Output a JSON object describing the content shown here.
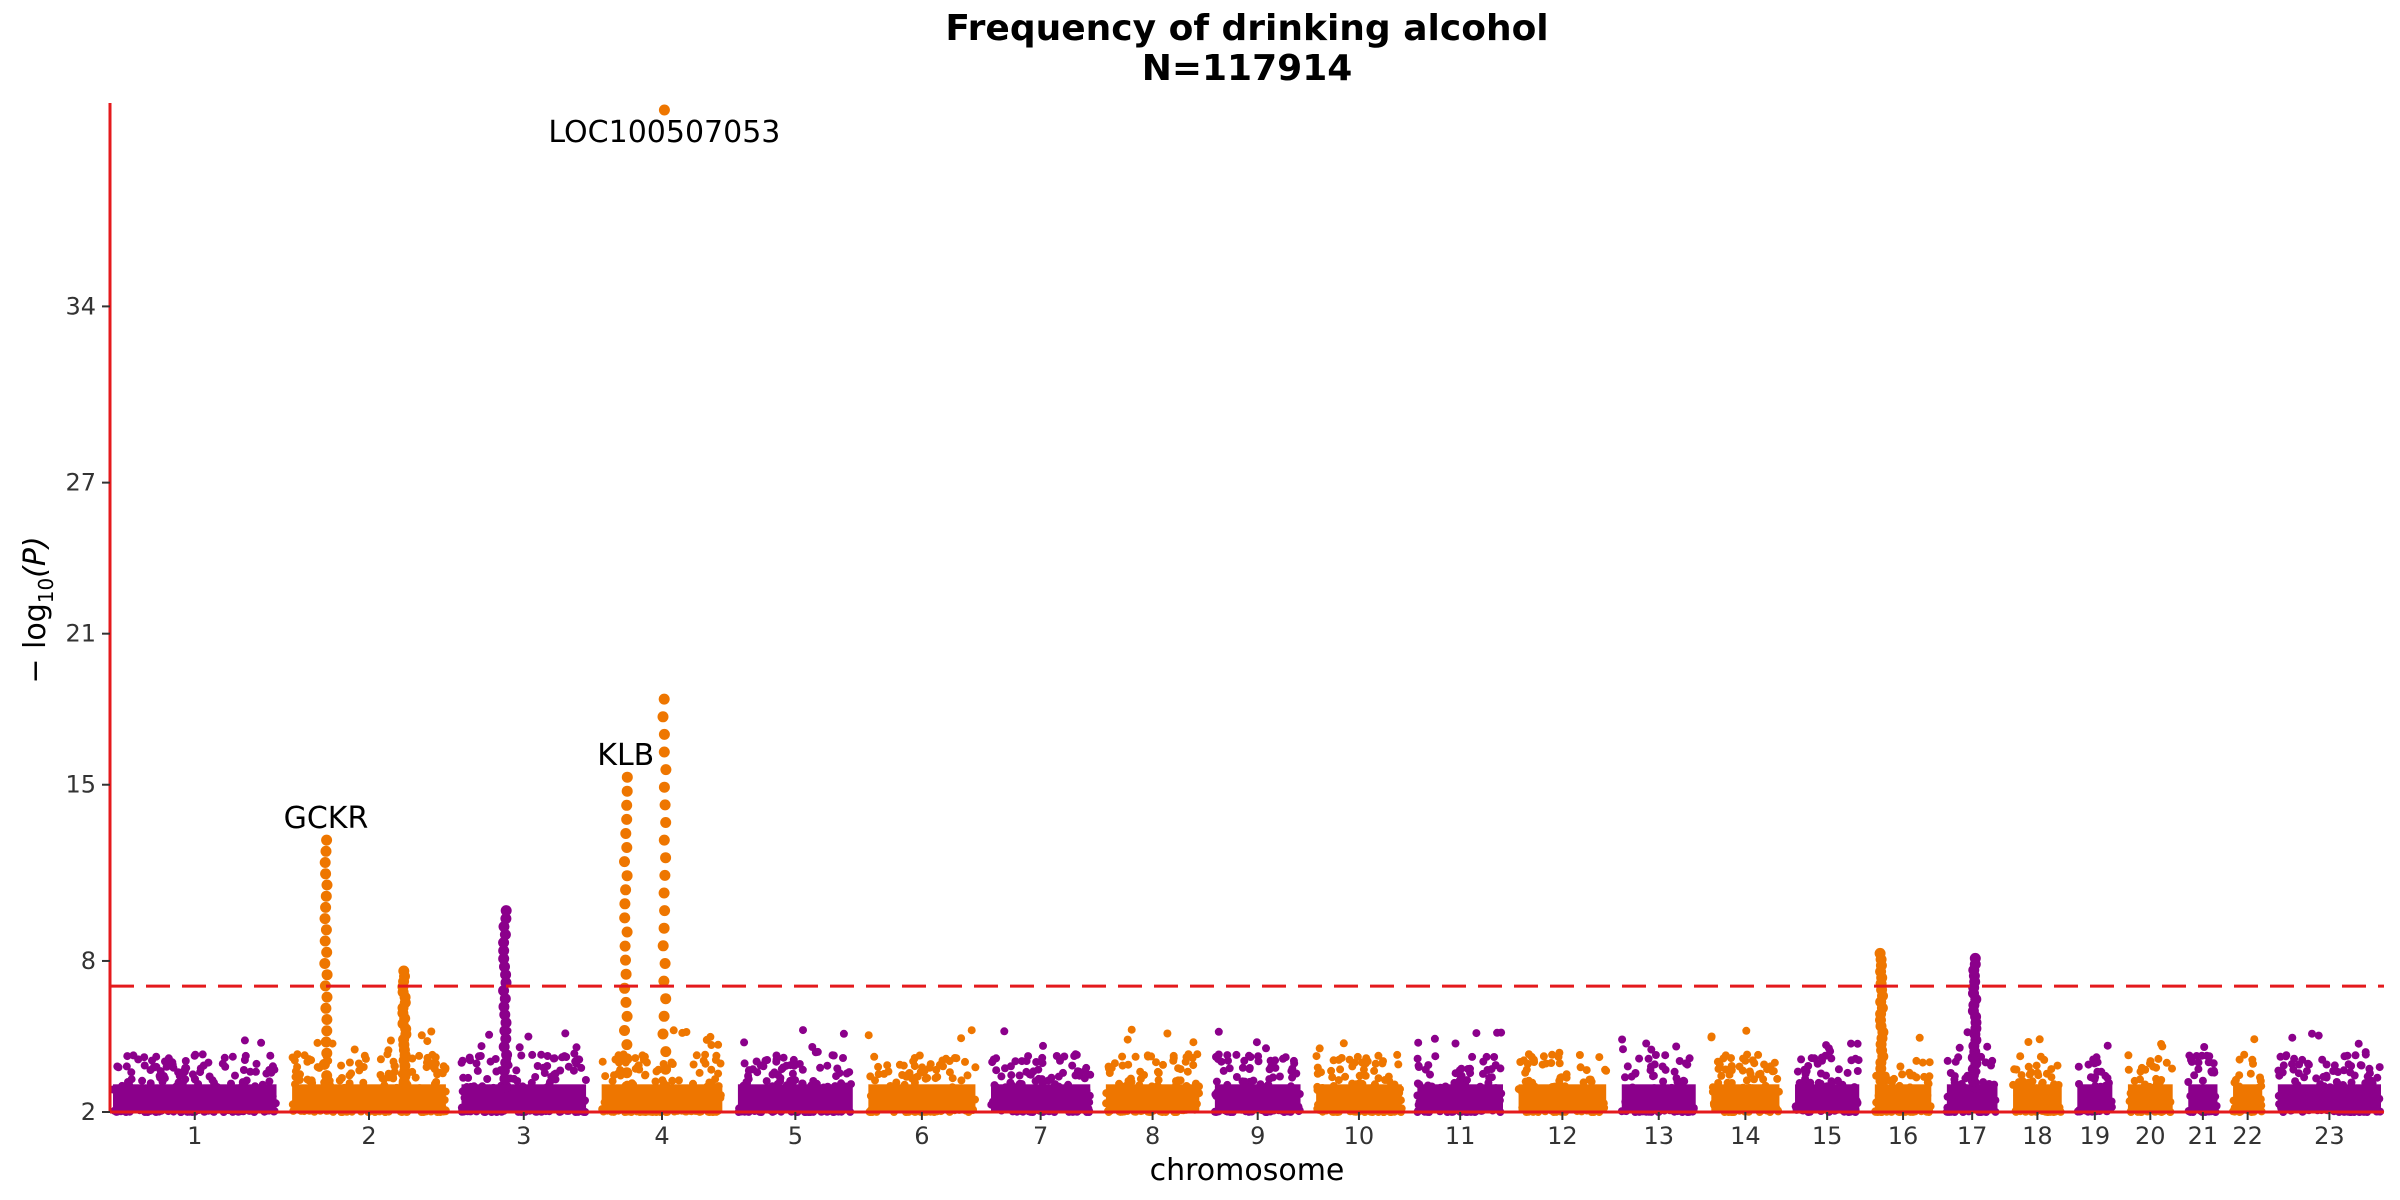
{
  "chart_data": {
    "type": "scatter",
    "subtype": "manhattan",
    "title": "Frequency of drinking alcohol",
    "subtitle": "N=117914",
    "xlabel": "chromosome",
    "ylabel_prefix": "− log",
    "ylabel_sub": "10",
    "ylabel_suffix": "(P)",
    "ylim": [
      2,
      42
    ],
    "yticks": [
      "2",
      "8",
      "15",
      "21",
      "27",
      "34"
    ],
    "significance_threshold": 7,
    "colors": {
      "odd": "#8B008B",
      "even": "#EE7600",
      "axis": "#E41A1C",
      "threshold": "#E41A1C"
    },
    "chromosomes": [
      {
        "label": "1",
        "size": 8.4
      },
      {
        "label": "2",
        "size": 7.9
      },
      {
        "label": "3",
        "size": 6.4
      },
      {
        "label": "4",
        "size": 6.2
      },
      {
        "label": "5",
        "size": 5.9
      },
      {
        "label": "6",
        "size": 5.5
      },
      {
        "label": "7",
        "size": 5.1
      },
      {
        "label": "8",
        "size": 4.8
      },
      {
        "label": "9",
        "size": 4.4
      },
      {
        "label": "10",
        "size": 4.4
      },
      {
        "label": "11",
        "size": 4.4
      },
      {
        "label": "12",
        "size": 4.5
      },
      {
        "label": "13",
        "size": 3.8
      },
      {
        "label": "14",
        "size": 3.5
      },
      {
        "label": "15",
        "size": 3.3
      },
      {
        "label": "16",
        "size": 2.9
      },
      {
        "label": "17",
        "size": 2.6
      },
      {
        "label": "18",
        "size": 2.5
      },
      {
        "label": "19",
        "size": 1.8
      },
      {
        "label": "20",
        "size": 2.3
      },
      {
        "label": "21",
        "size": 1.5
      },
      {
        "label": "22",
        "size": 1.5
      },
      {
        "label": "23",
        "size": 5.3
      }
    ],
    "peaks": [
      {
        "chr": "2",
        "pos": 0.22,
        "max": 12.8,
        "label": "GCKR"
      },
      {
        "chr": "2",
        "pos": 0.73,
        "max": 7.6
      },
      {
        "chr": "3",
        "pos": 0.35,
        "max": 10.0
      },
      {
        "chr": "4",
        "pos": 0.2,
        "max": 15.3,
        "label": "KLB"
      },
      {
        "chr": "4",
        "pos": 0.52,
        "max": 18.4
      },
      {
        "chr": "4",
        "pos": 0.52,
        "max": 41.8,
        "label": "LOC100507053",
        "label_below": true
      },
      {
        "chr": "16",
        "pos": 0.12,
        "max": 8.3
      },
      {
        "chr": "17",
        "pos": 0.55,
        "max": 8.1
      }
    ]
  }
}
